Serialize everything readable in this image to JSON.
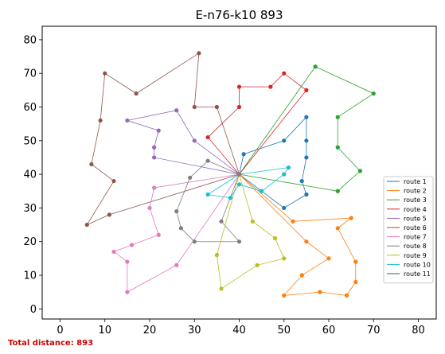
{
  "chart_data": {
    "type": "line",
    "title": "E-n76-k10 893",
    "xlim": [
      -4,
      84
    ],
    "ylim": [
      -3,
      84
    ],
    "xticks": [
      0,
      10,
      20,
      30,
      40,
      50,
      60,
      70,
      80
    ],
    "yticks": [
      0,
      10,
      20,
      30,
      40,
      50,
      60,
      70,
      80
    ],
    "xlabel": "",
    "ylabel": "",
    "depot": [
      40,
      40
    ],
    "legend_position": "right",
    "series": [
      {
        "name": "route 1",
        "color": "#1f77b4",
        "points": [
          [
            40,
            40
          ],
          [
            41,
            46
          ],
          [
            50,
            50
          ],
          [
            55,
            57
          ],
          [
            55,
            50
          ],
          [
            55,
            45
          ],
          [
            54,
            38
          ],
          [
            55,
            34
          ],
          [
            50,
            30
          ],
          [
            40,
            40
          ]
        ]
      },
      {
        "name": "route 2",
        "color": "#ff7f0e",
        "points": [
          [
            40,
            40
          ],
          [
            52,
            26
          ],
          [
            65,
            27
          ],
          [
            62,
            24
          ],
          [
            66,
            14
          ],
          [
            66,
            8
          ],
          [
            64,
            4
          ],
          [
            58,
            5
          ],
          [
            50,
            4
          ],
          [
            54,
            10
          ],
          [
            60,
            15
          ],
          [
            55,
            20
          ],
          [
            40,
            40
          ]
        ]
      },
      {
        "name": "route 3",
        "color": "#2ca02c",
        "points": [
          [
            40,
            40
          ],
          [
            62,
            35
          ],
          [
            67,
            41
          ],
          [
            62,
            48
          ],
          [
            62,
            57
          ],
          [
            70,
            64
          ],
          [
            57,
            72
          ],
          [
            40,
            40
          ]
        ]
      },
      {
        "name": "route 4",
        "color": "#d62728",
        "points": [
          [
            40,
            40
          ],
          [
            33,
            51
          ],
          [
            40,
            60
          ],
          [
            40,
            66
          ],
          [
            47,
            66
          ],
          [
            50,
            70
          ],
          [
            55,
            65
          ],
          [
            40,
            40
          ]
        ]
      },
      {
        "name": "route 5",
        "color": "#9467bd",
        "points": [
          [
            40,
            40
          ],
          [
            30,
            50
          ],
          [
            26,
            59
          ],
          [
            15,
            56
          ],
          [
            22,
            53
          ],
          [
            21,
            48
          ],
          [
            21,
            45
          ],
          [
            40,
            40
          ]
        ]
      },
      {
        "name": "route 6",
        "color": "#8c564b",
        "points": [
          [
            40,
            40
          ],
          [
            35,
            60
          ],
          [
            30,
            60
          ],
          [
            31,
            76
          ],
          [
            17,
            64
          ],
          [
            10,
            70
          ],
          [
            9,
            56
          ],
          [
            7,
            43
          ],
          [
            12,
            38
          ],
          [
            6,
            25
          ],
          [
            11,
            28
          ],
          [
            40,
            40
          ]
        ]
      },
      {
        "name": "route 7",
        "color": "#e377c2",
        "points": [
          [
            40,
            40
          ],
          [
            21,
            36
          ],
          [
            20,
            30
          ],
          [
            22,
            22
          ],
          [
            16,
            19
          ],
          [
            12,
            17
          ],
          [
            15,
            14
          ],
          [
            15,
            5
          ],
          [
            26,
            13
          ],
          [
            40,
            40
          ]
        ]
      },
      {
        "name": "route 8",
        "color": "#7f7f7f",
        "points": [
          [
            40,
            40
          ],
          [
            33,
            44
          ],
          [
            29,
            39
          ],
          [
            26,
            29
          ],
          [
            27,
            24
          ],
          [
            30,
            20
          ],
          [
            40,
            20
          ],
          [
            36,
            26
          ],
          [
            40,
            40
          ]
        ]
      },
      {
        "name": "route 9",
        "color": "#bcbd22",
        "points": [
          [
            40,
            40
          ],
          [
            43,
            26
          ],
          [
            48,
            21
          ],
          [
            50,
            15
          ],
          [
            44,
            13
          ],
          [
            36,
            6
          ],
          [
            35,
            16
          ],
          [
            40,
            40
          ]
        ]
      },
      {
        "name": "route 10",
        "color": "#17becf",
        "points": [
          [
            40,
            40
          ],
          [
            33,
            34
          ],
          [
            38,
            33
          ],
          [
            40,
            37
          ],
          [
            45,
            35
          ],
          [
            50,
            40
          ],
          [
            51,
            42
          ],
          [
            40,
            40
          ]
        ]
      },
      {
        "name": "route 11",
        "color": "#0b7a3a",
        "points": []
      }
    ],
    "footer": "Total distance: 893"
  }
}
